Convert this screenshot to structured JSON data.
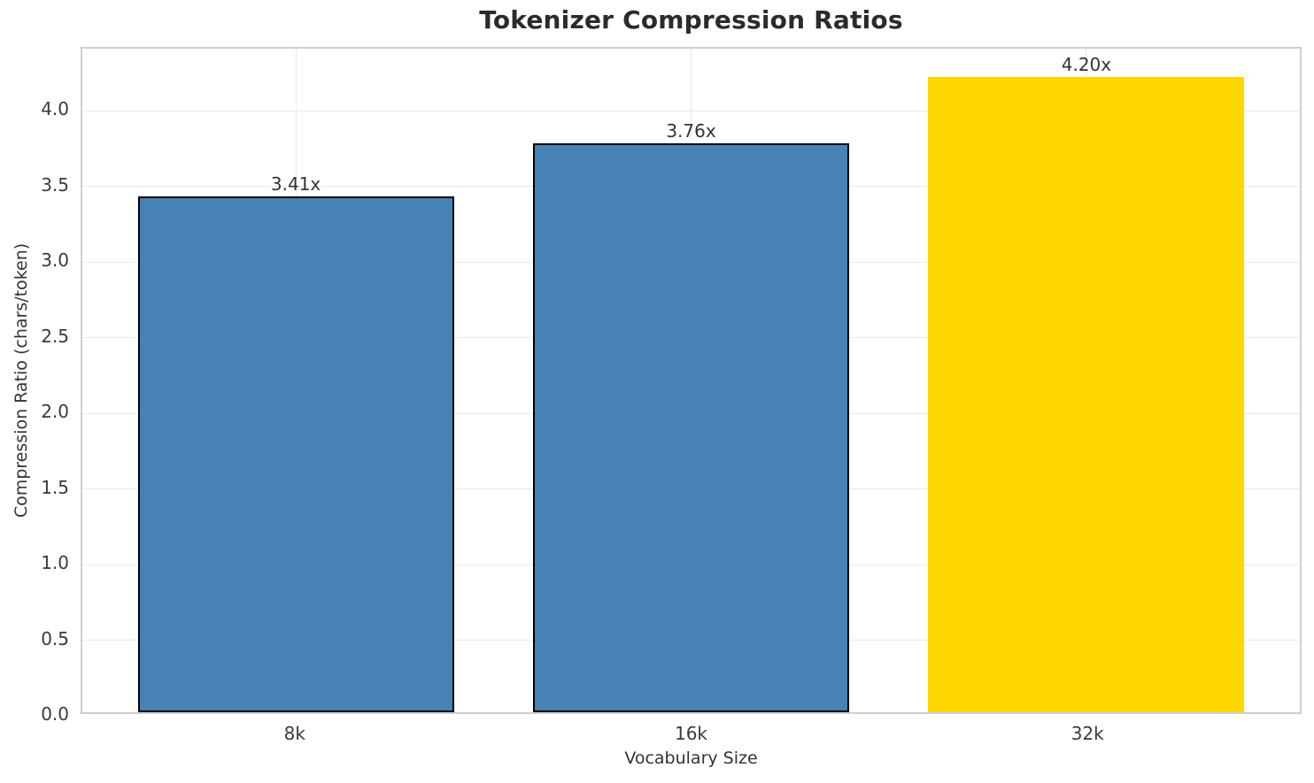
{
  "chart_data": {
    "type": "bar",
    "title": "Tokenizer Compression Ratios",
    "xlabel": "Vocabulary Size",
    "ylabel": "Compression Ratio (chars/token)",
    "categories": [
      "8k",
      "16k",
      "32k"
    ],
    "values": [
      3.41,
      3.76,
      4.2
    ],
    "bar_labels": [
      "3.41x",
      "3.76x",
      "4.20x"
    ],
    "bar_colors": [
      "#4682B4",
      "#4682B4",
      "#FFD700"
    ],
    "bar_edge_colors": [
      "#000000",
      "#000000",
      "none"
    ],
    "bar_width_fraction": 0.8,
    "yticks": [
      0.0,
      0.5,
      1.0,
      1.5,
      2.0,
      2.5,
      3.0,
      3.5,
      4.0
    ],
    "ytick_labels": [
      "0.0",
      "0.5",
      "1.0",
      "1.5",
      "2.0",
      "2.5",
      "3.0",
      "3.5",
      "4.0"
    ],
    "ylim": [
      0,
      4.41
    ],
    "xlim": [
      -0.54,
      2.54
    ],
    "grid": true,
    "legend": null,
    "colors": {
      "grid": "#e9e9e9",
      "spine": "#cfcfcf",
      "tick_text": "#3a3a3a",
      "title_text": "#2b2b2b",
      "label_text": "#333333"
    }
  }
}
